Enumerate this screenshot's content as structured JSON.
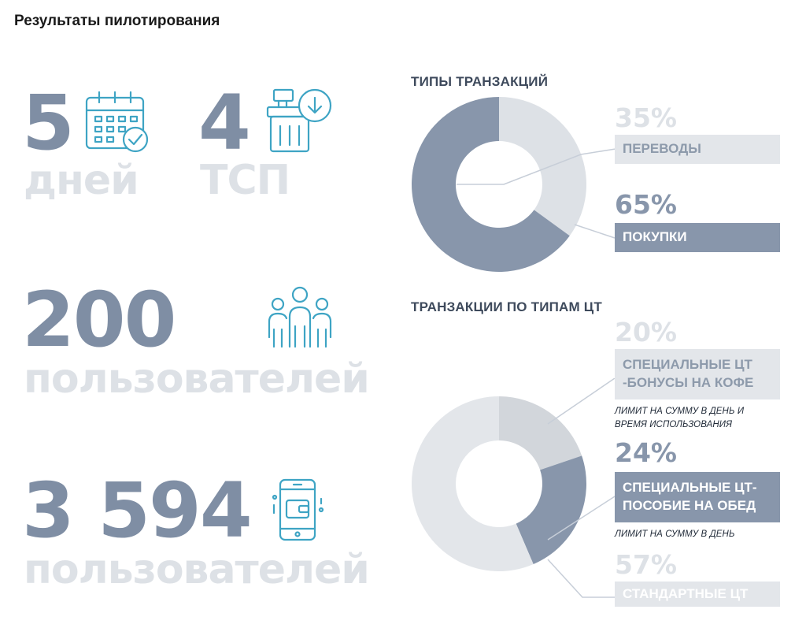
{
  "page_title": "Результаты пилотирования",
  "stats": [
    {
      "value": "5",
      "unit": "дней",
      "icon": "calendar-check-icon"
    },
    {
      "value": "4",
      "unit": "ТСП",
      "icon": "cash-register-icon"
    },
    {
      "value": "200",
      "unit": "пользователей",
      "icon": "users-group-icon"
    },
    {
      "value": "3 594",
      "unit": "пользователей",
      "icon": "mobile-wallet-icon"
    }
  ],
  "colors": {
    "dark": "#8896ab",
    "mid": "#aab5c4",
    "light": "#dde1e6",
    "lighter": "#e7e9ec",
    "icon": "#3ea4c4"
  },
  "chart_data": [
    {
      "type": "pie",
      "title": "ТИПЫ ТРАНЗАКЦИЙ",
      "donut": true,
      "slices": [
        {
          "label": "ПЕРЕВОДЫ",
          "value": 35,
          "pct_label": "35%",
          "color": "#dde1e6"
        },
        {
          "label": "ПОКУПКИ",
          "value": 65,
          "pct_label": "65%",
          "color": "#8896ab"
        }
      ]
    },
    {
      "type": "pie",
      "title": "ТРАНЗАКЦИИ ПО ТИПАМ ЦТ",
      "donut": true,
      "slices": [
        {
          "label": "СПЕЦИАЛЬНЫЕ ЦТ -БОНУСЫ НА КОФЕ",
          "label_lines": [
            "СПЕЦИАЛЬНЫЕ ЦТ",
            "-БОНУСЫ НА КОФЕ"
          ],
          "value": 20,
          "pct_label": "20%",
          "note_lines": [
            "ЛИМИТ НА СУММУ В ДЕНЬ И",
            "ВРЕМЯ ИСПОЛЬЗОВАНИЯ"
          ],
          "color": "#d2d6db"
        },
        {
          "label": "СПЕЦИАЛЬНЫЕ ЦТ- ПОСОБИЕ НА ОБЕД",
          "label_lines": [
            "СПЕЦИАЛЬНЫЕ ЦТ-",
            "ПОСОБИЕ НА ОБЕД"
          ],
          "value": 24,
          "pct_label": "24%",
          "note_lines": [
            "ЛИМИТ НА СУММУ В ДЕНЬ"
          ],
          "color": "#8896ab"
        },
        {
          "label": "СТАНДАРТНЫЕ ЦТ",
          "label_lines": [
            "СТАНДАРТНЫЕ ЦТ"
          ],
          "value": 57,
          "pct_label": "57%",
          "color": "#e3e6ea"
        }
      ]
    }
  ]
}
